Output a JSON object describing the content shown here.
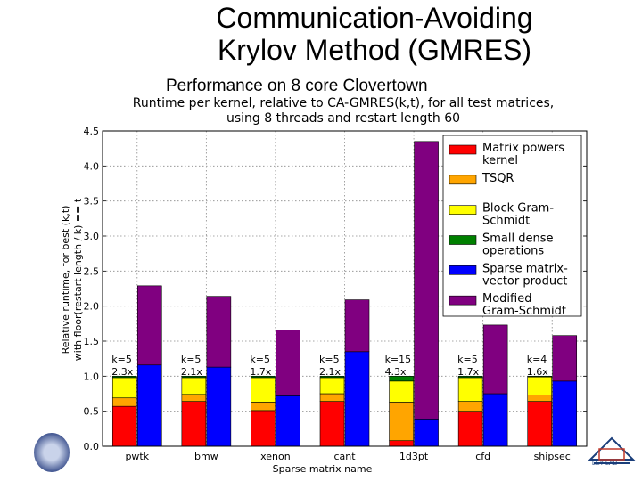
{
  "slide": {
    "title_line1": "Communication-Avoiding",
    "title_line2": "Krylov Method (GMRES)",
    "subtitle": "Performance on 8 core Clovertown",
    "logo_right_text": "LEY LAB"
  },
  "chart_data": {
    "type": "bar",
    "title_line1": "Runtime per kernel, relative to CA-GMRES(k,t), for all test matrices,",
    "title_line2": "using 8 threads and restart length 60",
    "xlabel": "Sparse matrix name",
    "ylabel_line1": "Relative runtime, for best (k,t)",
    "ylabel_line2": "with floor(restart length / k) == t",
    "ylim": [
      0,
      4.5
    ],
    "yticks": [
      "0.0",
      "0.5",
      "1.0",
      "1.5",
      "2.0",
      "2.5",
      "3.0",
      "3.5",
      "4.0",
      "4.5"
    ],
    "grid": true,
    "legend_position": "top-right",
    "categories": [
      "pwtk",
      "bmw",
      "xenon",
      "cant",
      "1d3pt",
      "cfd",
      "shipsec"
    ],
    "annotations": [
      {
        "k_label": "k=5",
        "speedup": "2.3x"
      },
      {
        "k_label": "k=5",
        "speedup": "2.1x"
      },
      {
        "k_label": "k=5",
        "speedup": "1.7x"
      },
      {
        "k_label": "k=5",
        "speedup": "2.1x"
      },
      {
        "k_label": "k=15",
        "speedup": "4.3x"
      },
      {
        "k_label": "k=5",
        "speedup": "1.7x"
      },
      {
        "k_label": "k=4",
        "speedup": "1.6x"
      }
    ],
    "ca_gmres_series": [
      {
        "name": "Matrix powers kernel",
        "color": "#ff0000",
        "values": [
          0.57,
          0.64,
          0.51,
          0.64,
          0.08,
          0.5,
          0.64
        ]
      },
      {
        "name": "TSQR",
        "color": "#ffa500",
        "values": [
          0.12,
          0.1,
          0.12,
          0.11,
          0.55,
          0.14,
          0.09
        ]
      },
      {
        "name": "Block Gram-Schmidt",
        "color": "#ffff00",
        "values": [
          0.29,
          0.24,
          0.35,
          0.23,
          0.3,
          0.34,
          0.26
        ]
      },
      {
        "name": "Small dense operations",
        "color": "#008000",
        "values": [
          0.02,
          0.02,
          0.02,
          0.02,
          0.07,
          0.02,
          0.01
        ]
      }
    ],
    "gmres_series": [
      {
        "name": "Sparse matrix-vector product",
        "color": "#0000ff",
        "values": [
          1.16,
          1.13,
          0.72,
          1.35,
          0.39,
          0.75,
          0.93
        ]
      },
      {
        "name": "Modified Gram-Schmidt",
        "color": "#800080",
        "values": [
          1.13,
          1.01,
          0.94,
          0.74,
          3.96,
          0.98,
          0.65
        ]
      }
    ],
    "legend": [
      {
        "label": "Matrix powers\nkernel",
        "color": "#ff0000"
      },
      {
        "label": "TSQR",
        "color": "#ffa500"
      },
      {
        "label": "Block Gram-\nSchmidt",
        "color": "#ffff00"
      },
      {
        "label": "Small dense\noperations",
        "color": "#008000"
      },
      {
        "label": "Sparse matrix-\nvector product",
        "color": "#0000ff"
      },
      {
        "label": "Modified\nGram-Schmidt",
        "color": "#800080"
      }
    ]
  }
}
